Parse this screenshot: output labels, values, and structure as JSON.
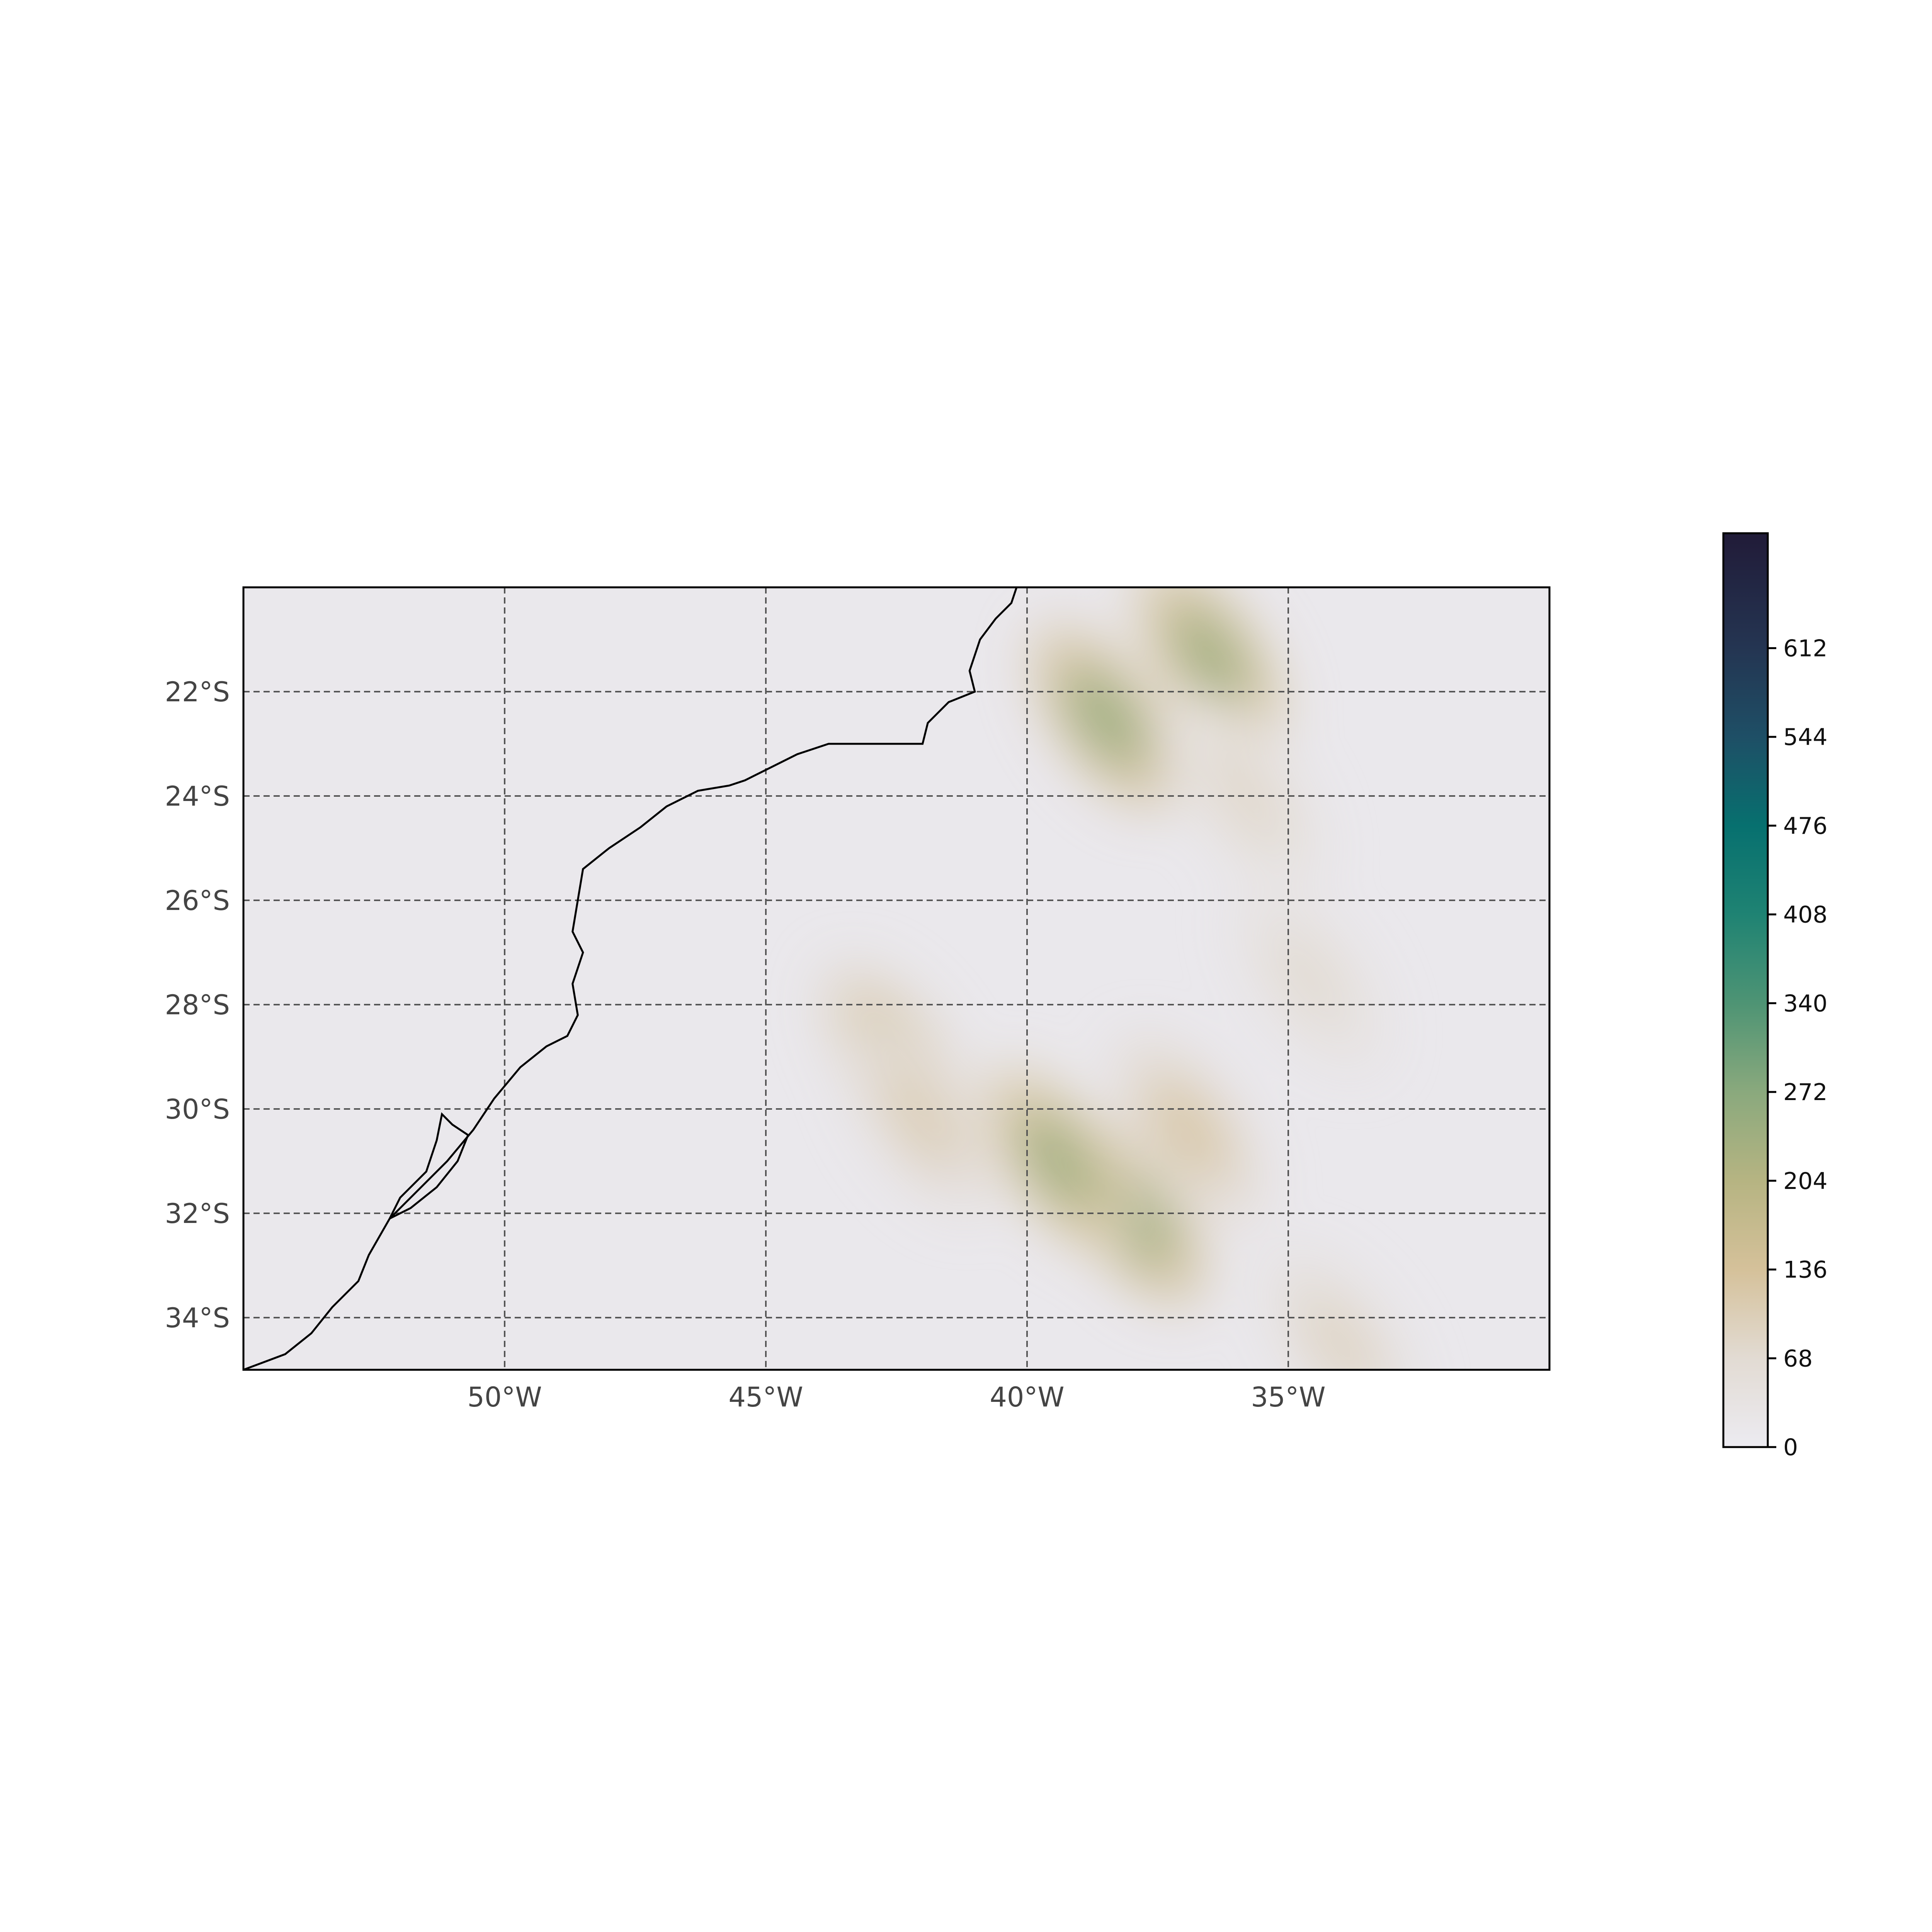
{
  "chart_data": {
    "type": "heatmap",
    "title": "",
    "map": {
      "projection": "PlateCarree",
      "lon_range": [
        -55,
        -30
      ],
      "lat_range": [
        -35,
        -20
      ],
      "lon_ticks": [
        -50,
        -45,
        -40,
        -35
      ],
      "lat_ticks": [
        -22,
        -24,
        -26,
        -28,
        -30,
        -32,
        -34
      ],
      "lon_tick_labels": [
        "50°W",
        "45°W",
        "40°W",
        "35°W"
      ],
      "lat_tick_labels": [
        "22°S",
        "24°S",
        "26°S",
        "28°S",
        "30°S",
        "32°S",
        "34°S"
      ],
      "gridlines": "dashed",
      "coastline": true
    },
    "field": {
      "background_value": 12,
      "features": [
        {
          "lon": -38.5,
          "lat": -22.5,
          "peak": 260,
          "note": "elongated band NW-SE"
        },
        {
          "lon": -36.5,
          "lat": -21.3,
          "peak": 250
        },
        {
          "lon": -35.8,
          "lat": -24.0,
          "peak": 80
        },
        {
          "lon": -34.6,
          "lat": -27.5,
          "peak": 70
        },
        {
          "lon": -42.5,
          "lat": -29.0,
          "peak": 170
        },
        {
          "lon": -42.0,
          "lat": -30.2,
          "peak": 110
        },
        {
          "lon": -38.0,
          "lat": -32.0,
          "peak": 270
        },
        {
          "lon": -39.4,
          "lat": -31.0,
          "peak": 250
        },
        {
          "lon": -36.9,
          "lat": -30.4,
          "peak": 130
        },
        {
          "lon": -34.0,
          "lat": -34.5,
          "peak": 90
        }
      ]
    },
    "colorbar": {
      "vmin": 0,
      "vmax": 700,
      "ticks": [
        0,
        68,
        136,
        204,
        272,
        340,
        408,
        476,
        544,
        612
      ],
      "tick_labels": [
        "0",
        "68",
        "136",
        "204",
        "272",
        "340",
        "408",
        "476",
        "544",
        "612"
      ],
      "colormap_stops": [
        {
          "value": 0,
          "color": "#ecebf1"
        },
        {
          "value": 68,
          "color": "#e2dbd3"
        },
        {
          "value": 136,
          "color": "#d5c19a"
        },
        {
          "value": 204,
          "color": "#b6b482"
        },
        {
          "value": 272,
          "color": "#8aa97d"
        },
        {
          "value": 340,
          "color": "#4e9474"
        },
        {
          "value": 408,
          "color": "#1f8373"
        },
        {
          "value": 476,
          "color": "#07706f"
        },
        {
          "value": 544,
          "color": "#1e4f66"
        },
        {
          "value": 612,
          "color": "#243552"
        },
        {
          "value": 700,
          "color": "#211b38"
        }
      ]
    }
  }
}
